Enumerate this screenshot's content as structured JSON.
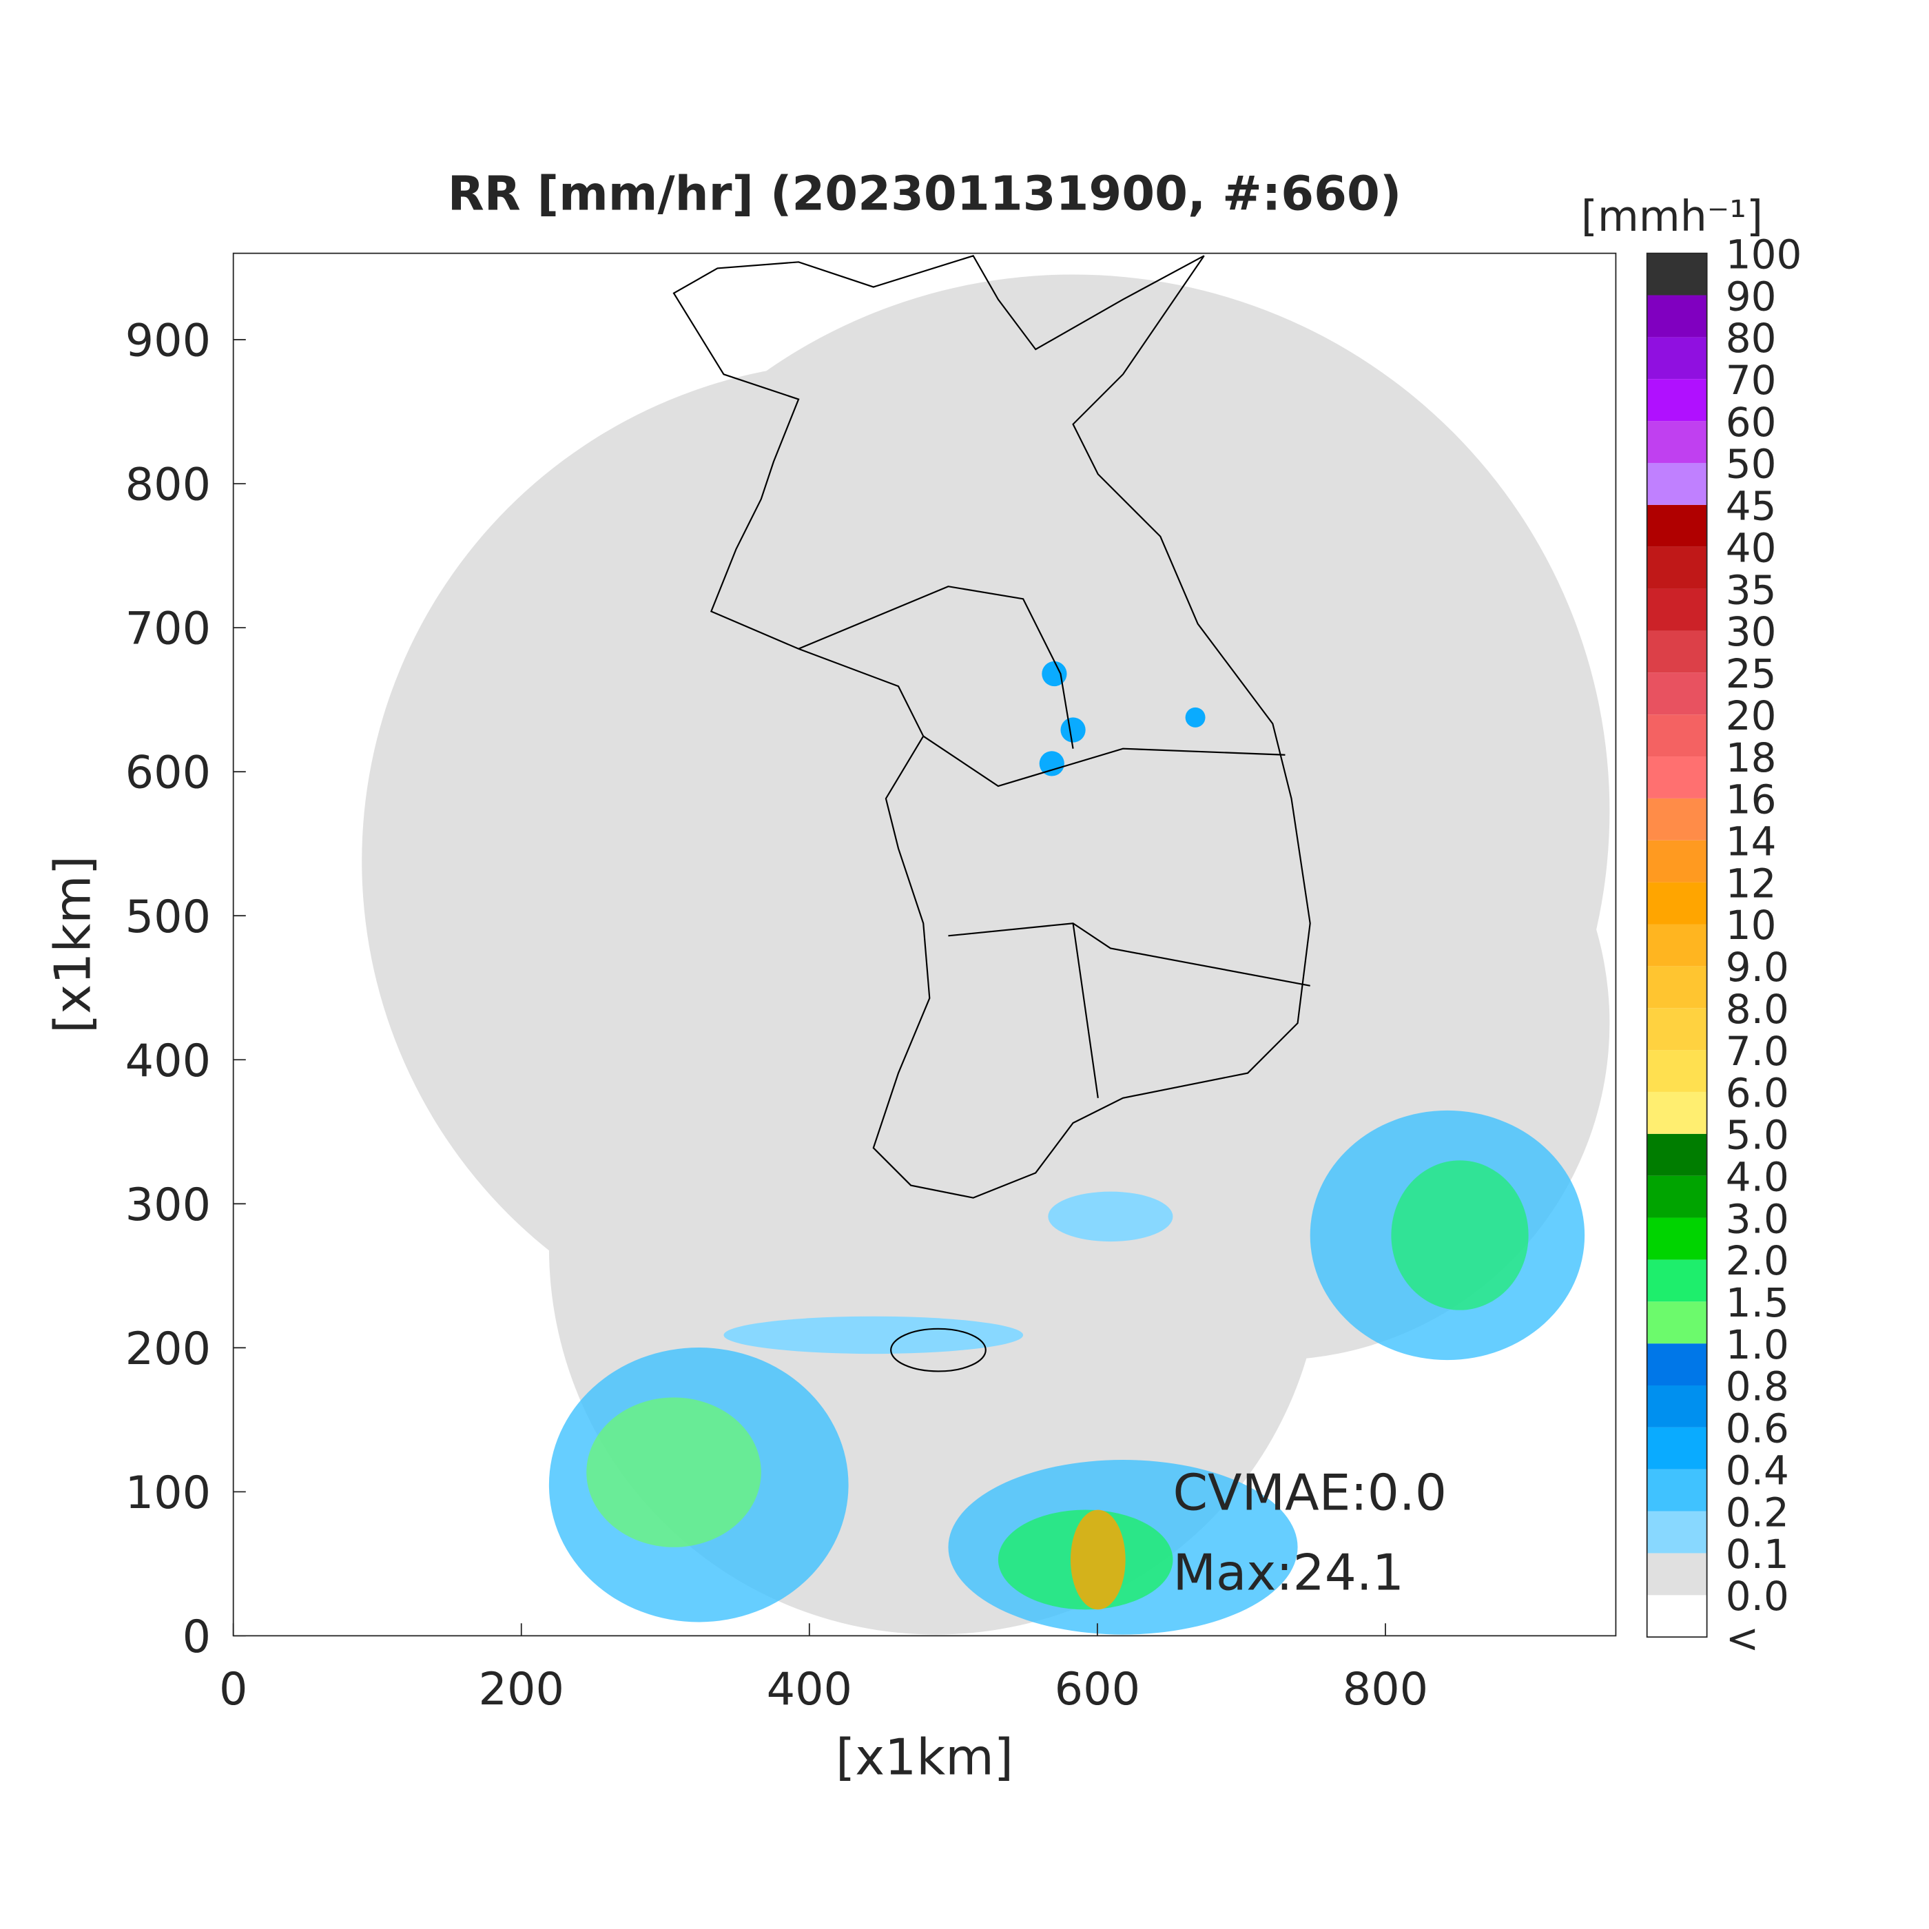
{
  "chart_data": {
    "type": "map",
    "title": "RR [mm/hr] (202301131900, #:660)",
    "xlabel": "[x1km]",
    "ylabel": "[x1km]",
    "xlim": [
      0,
      960
    ],
    "ylim": [
      0,
      960
    ],
    "xticks": [
      0,
      200,
      400,
      600,
      800
    ],
    "yticks": [
      0,
      100,
      200,
      300,
      400,
      500,
      600,
      700,
      800,
      900
    ],
    "annotations": [
      "CVMAE:0.0",
      "Max:24.1"
    ],
    "colorbar": {
      "title": "[mmh⁻¹]",
      "labels": [
        "<",
        "0.0",
        "0.1",
        "0.2",
        "0.4",
        "0.6",
        "0.8",
        "1.0",
        "1.5",
        "2.0",
        "3.0",
        "4.0",
        "5.0",
        "6.0",
        "7.0",
        "8.0",
        "9.0",
        "10",
        "12",
        "14",
        "16",
        "18",
        "20",
        "25",
        "30",
        "35",
        "40",
        "45",
        "50",
        "60",
        "70",
        "80",
        "90",
        "100"
      ],
      "colors": [
        "#ffffff",
        "#e0e0e0",
        "#88d8ff",
        "#40c2ff",
        "#0aabff",
        "#0090ef",
        "#0077e8",
        "#6cfa6c",
        "#1eee6c",
        "#00d400",
        "#00a400",
        "#007d00",
        "#ffee70",
        "#ffe050",
        "#ffd240",
        "#ffc530",
        "#ffb520",
        "#ffa500",
        "#ff9a20",
        "#ff8c48",
        "#ff7070",
        "#f46262",
        "#e85260",
        "#dc4048",
        "#cc2228",
        "#c01818",
        "#b00000",
        "#c080ff",
        "#c040f0",
        "#b010ff",
        "#9010e0",
        "#8000c0",
        "#333333"
      ]
    }
  }
}
